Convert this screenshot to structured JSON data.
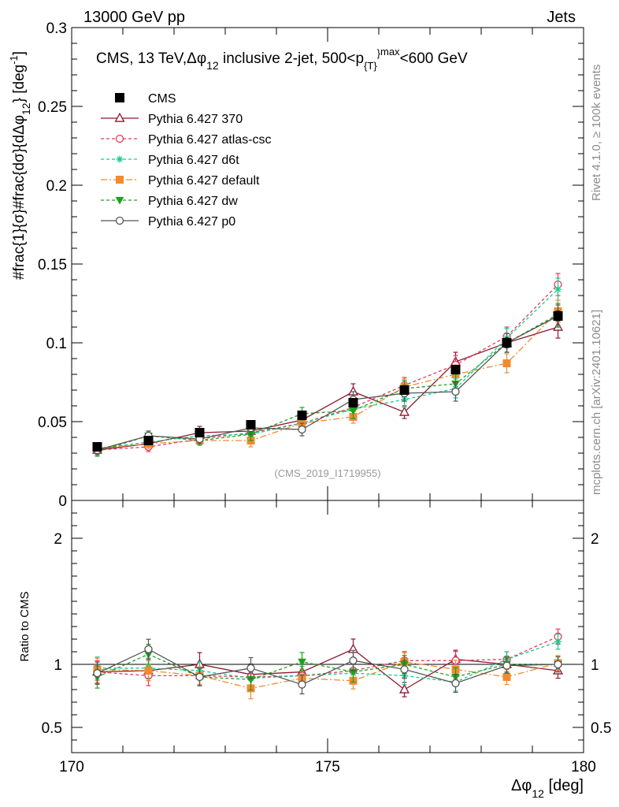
{
  "header": {
    "left": "13000 GeV pp",
    "right": "Jets"
  },
  "side_labels": {
    "rivet": "Rivet 4.1.0, ≥ 100k events",
    "mcplots": "mcplots.cern.ch [arXiv:2401.10621]"
  },
  "y_axis_label": {
    "main": "#frac{1}{σ}#frac{dσ}{dΔφ",
    "sub": "12",
    "unit_open": "} [deg",
    "unit_sup": "-1",
    "unit_close": "]"
  },
  "ratio_axis_label": "Ratio to CMS",
  "x_axis_label": {
    "main": "Δφ",
    "sub": "12",
    "unit": " [deg]"
  },
  "plot_title": {
    "p1": "CMS, 13 TeV,",
    "p2": "Δφ",
    "p2sub": "12",
    "p3": " inclusive 2-jet, 500<p",
    "p3sub": "{T}",
    "p3sup": "}",
    "p4sup": "max",
    "p5": "<600 GeV"
  },
  "watermark": "(CMS_2019_I1719955)",
  "colors": {
    "cms": "#000000",
    "p370": "#8b1a2f",
    "atlas": "#e8385e",
    "d6t": "#19c98a",
    "default": "#f28a30",
    "dw": "#1aa31a",
    "p0": "#555555"
  },
  "chart_data": {
    "type": "line",
    "title": "CMS, 13 TeV, Δφ12 inclusive 2-jet, 500<p{T}max<600 GeV",
    "xlabel": "Δφ12 [deg]",
    "ylabel": "1/σ dσ/dΔφ12 [deg-1]",
    "xlim": [
      170,
      180
    ],
    "ylim": [
      0,
      0.3
    ],
    "ratio_ylim": [
      0.3,
      2.3
    ],
    "x_ticks": [
      170,
      175,
      180
    ],
    "y_ticks": [
      0,
      0.05,
      0.1,
      0.15,
      0.2,
      0.25,
      0.3
    ],
    "y_tick_labels": [
      "0",
      "0.05",
      "0.1",
      "0.15",
      "0.2",
      "0.25",
      "0.3"
    ],
    "ratio_ticks": [
      0.5,
      1,
      2
    ],
    "ratio_tick_labels": [
      "0.5",
      "1",
      "2"
    ],
    "x": [
      170.5,
      171.5,
      172.5,
      173.5,
      174.5,
      175.5,
      176.5,
      177.5,
      178.5,
      179.5
    ],
    "series": [
      {
        "name": "CMS",
        "values": [
          0.034,
          0.038,
          0.043,
          0.048,
          0.054,
          0.062,
          0.07,
          0.083,
          0.1,
          0.117
        ],
        "errors": [
          0.002,
          0.002,
          0.002,
          0.002,
          0.002,
          0.002,
          0.002,
          0.002,
          0.003,
          0.003
        ],
        "ratio": [
          1,
          1,
          1,
          1,
          1,
          1,
          1,
          1,
          1,
          1
        ]
      },
      {
        "name": "Pythia 6.427 370",
        "values": [
          0.032,
          0.036,
          0.043,
          0.044,
          0.051,
          0.069,
          0.056,
          0.088,
          0.1,
          0.11
        ],
        "errors": [
          0.003,
          0.003,
          0.004,
          0.004,
          0.004,
          0.005,
          0.004,
          0.006,
          0.006,
          0.007
        ],
        "ratio": [
          0.94,
          0.95,
          1.0,
          0.92,
          0.94,
          1.12,
          0.8,
          1.04,
          1.0,
          0.95
        ]
      },
      {
        "name": "Pythia 6.427 atlas-csc",
        "values": [
          0.032,
          0.034,
          0.039,
          0.043,
          0.049,
          0.059,
          0.073,
          0.086,
          0.104,
          0.137
        ],
        "errors": [
          0.003,
          0.003,
          0.003,
          0.004,
          0.004,
          0.005,
          0.005,
          0.006,
          0.006,
          0.007
        ],
        "ratio": [
          0.94,
          0.91,
          0.91,
          0.9,
          0.91,
          0.95,
          1.03,
          1.03,
          1.04,
          1.22
        ]
      },
      {
        "name": "Pythia 6.427 d6t",
        "values": [
          0.033,
          0.037,
          0.041,
          0.042,
          0.049,
          0.058,
          0.064,
          0.071,
          0.103,
          0.134
        ],
        "errors": [
          0.003,
          0.003,
          0.003,
          0.004,
          0.004,
          0.005,
          0.005,
          0.006,
          0.006,
          0.007
        ],
        "ratio": [
          0.97,
          0.97,
          0.95,
          0.89,
          0.91,
          0.93,
          0.91,
          0.86,
          1.04,
          1.18
        ]
      },
      {
        "name": "Pythia 6.427 default",
        "values": [
          0.033,
          0.036,
          0.038,
          0.038,
          0.049,
          0.053,
          0.072,
          0.08,
          0.087,
          0.12
        ],
        "errors": [
          0.003,
          0.003,
          0.003,
          0.004,
          0.004,
          0.004,
          0.005,
          0.006,
          0.006,
          0.007
        ],
        "ratio": [
          0.96,
          0.95,
          0.91,
          0.81,
          0.89,
          0.87,
          1.02,
          0.96,
          0.9,
          1.01
        ]
      },
      {
        "name": "Pythia 6.427 dw",
        "values": [
          0.031,
          0.041,
          0.038,
          0.042,
          0.055,
          0.057,
          0.071,
          0.074,
          0.1,
          0.118
        ],
        "errors": [
          0.003,
          0.003,
          0.003,
          0.004,
          0.004,
          0.005,
          0.005,
          0.006,
          0.006,
          0.007
        ],
        "ratio": [
          0.9,
          1.08,
          0.9,
          0.88,
          1.02,
          0.94,
          1.0,
          0.9,
          1.0,
          1.0
        ]
      },
      {
        "name": "Pythia 6.427 p0",
        "values": [
          0.032,
          0.041,
          0.039,
          0.046,
          0.045,
          0.064,
          0.068,
          0.069,
          0.1,
          0.117
        ],
        "errors": [
          0.003,
          0.003,
          0.003,
          0.004,
          0.004,
          0.005,
          0.005,
          0.006,
          0.006,
          0.007
        ],
        "ratio": [
          0.93,
          1.12,
          0.9,
          0.97,
          0.84,
          1.03,
          0.96,
          0.85,
          0.99,
          1.0
        ]
      }
    ]
  }
}
